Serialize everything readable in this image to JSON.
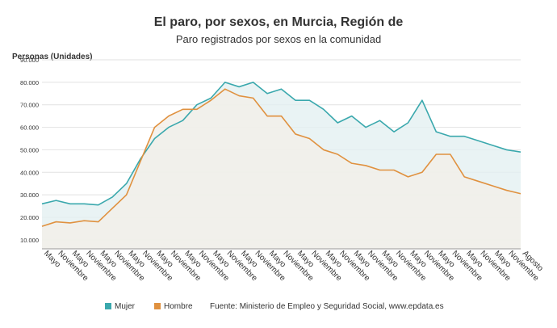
{
  "chart_data": {
    "type": "line",
    "title": "El paro, por sexos, en Murcia, Región de",
    "subtitle": "Paro registrados por sexos en la comunidad",
    "y_label": "Personas (Unidades)",
    "source": "Fuente: Ministerio de Empleo y Seguridad Social, www.epdata.es",
    "categories": [
      "Mayo",
      "Noviembre",
      "Mayo",
      "Noviembre",
      "Mayo",
      "Noviembre",
      "Mayo",
      "Noviembre",
      "Mayo",
      "Noviembre",
      "Mayo",
      "Noviembre",
      "Mayo",
      "Noviembre",
      "Mayo",
      "Noviembre",
      "Mayo",
      "Noviembre",
      "Mayo",
      "Noviembre",
      "Mayo",
      "Noviembre",
      "Mayo",
      "Noviembre",
      "Mayo",
      "Noviembre",
      "Mayo",
      "Noviembre",
      "Mayo",
      "Noviembre",
      "Mayo",
      "Noviembre",
      "Mayo",
      "Noviembre",
      "Agosto"
    ],
    "series": [
      {
        "name": "Mujer",
        "color": "#3aa8ad",
        "fill": "#e4f0f1",
        "values": [
          26000,
          27500,
          26000,
          26000,
          25500,
          29000,
          35000,
          46000,
          55000,
          60000,
          63000,
          70000,
          73000,
          80000,
          78000,
          80000,
          75000,
          77000,
          72000,
          72000,
          68000,
          62000,
          65000,
          60000,
          63000,
          58000,
          62000,
          72000,
          58000,
          56000,
          56000,
          54000,
          52000,
          50000,
          49000
        ]
      },
      {
        "name": "Hombre",
        "color": "#e0913f",
        "fill": "#f3efe8",
        "values": [
          16000,
          18000,
          17500,
          18500,
          18000,
          24000,
          30000,
          45000,
          60000,
          65000,
          68000,
          68000,
          72000,
          77000,
          74000,
          73000,
          65000,
          65000,
          57000,
          55000,
          50000,
          48000,
          44000,
          43000,
          41000,
          41000,
          38000,
          40000,
          48000,
          48000,
          38000,
          36000,
          34000,
          32000,
          30500
        ]
      }
    ],
    "ylim": [
      6000,
      90000
    ],
    "yticks": [
      {
        "value": 10000,
        "label": "10.000"
      },
      {
        "value": 20000,
        "label": "20.000"
      },
      {
        "value": 30000,
        "label": "30.000"
      },
      {
        "value": 40000,
        "label": "40.000"
      },
      {
        "value": 50000,
        "label": "50.000"
      },
      {
        "value": 60000,
        "label": "60.000"
      },
      {
        "value": 70000,
        "label": "70.000"
      },
      {
        "value": 80000,
        "label": "80.000"
      },
      {
        "value": 90000,
        "label": "90.000"
      }
    ],
    "grid": true
  }
}
